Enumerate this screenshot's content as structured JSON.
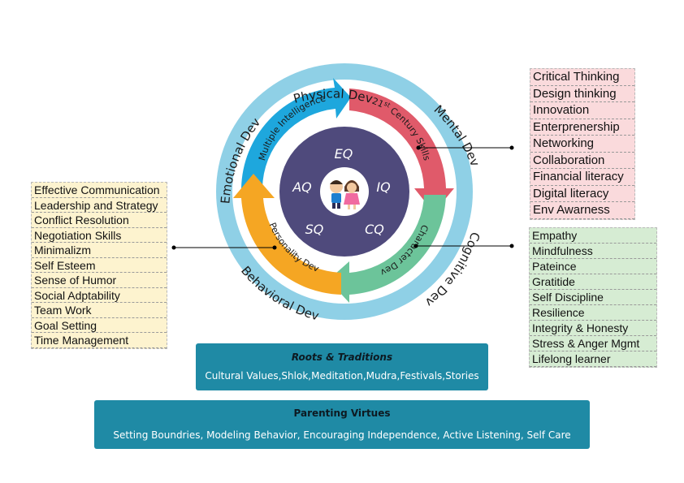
{
  "outer_ring": {
    "top": "Physical Dev",
    "right_top": "Mental Dev",
    "right_bottom": "Cognitive Dev",
    "bottom": "Behavioral Dev",
    "left": "Emotional Dev"
  },
  "arrows": {
    "multiple_intelligence": "Multiple Intelligence",
    "century_skills_prefix": "21",
    "century_skills_sup": "st",
    "century_skills_suffix": " Century Skills",
    "character_dev": "Character Dev",
    "personality_dev": "Personality Dev"
  },
  "quotients": {
    "top": "EQ",
    "left": "AQ",
    "right": "IQ",
    "bottom_left": "SQ",
    "bottom_right": "CQ"
  },
  "lists": {
    "left": [
      "Effective Communication",
      "Leadership and Strategy",
      "Conflict Resolution",
      "Negotiation Skills",
      "Minimalizm",
      "Self Esteem",
      "Sense of Humor",
      "Social Adptability",
      "Team Work",
      "Goal Setting",
      "Time Management"
    ],
    "right_top": [
      "Critical Thinking",
      "Design thinking",
      "Innovation",
      "Enterprenership",
      "Networking",
      "Collaboration",
      "Financial literacy",
      "Digital literacy",
      "Env Awarness"
    ],
    "right_bottom": [
      "Empathy",
      "Mindfulness",
      "Pateince",
      "Gratitide",
      "Self Discipline",
      "Resilience",
      "Integrity & Honesty",
      "Stress & Anger Mgmt",
      "Lifelong learner"
    ]
  },
  "roots": {
    "title": "Roots & Traditions",
    "body": "Cultural Values,Shlok,Meditation,Mudra,Festivals,Stories"
  },
  "virtues": {
    "title": "Parenting Virtues",
    "body": "Setting Boundries, Modeling Behavior, Encouraging Independence, Active Listening, Self Care"
  },
  "colors": {
    "outer_ring": "#8fd0e6",
    "blue_arrow": "#1ea7dd",
    "red_arrow": "#e05a6a",
    "green_arrow": "#6cc49a",
    "orange_arrow": "#f5a623",
    "inner_circle": "#4f4a7c",
    "box": "#1f8aa5"
  }
}
